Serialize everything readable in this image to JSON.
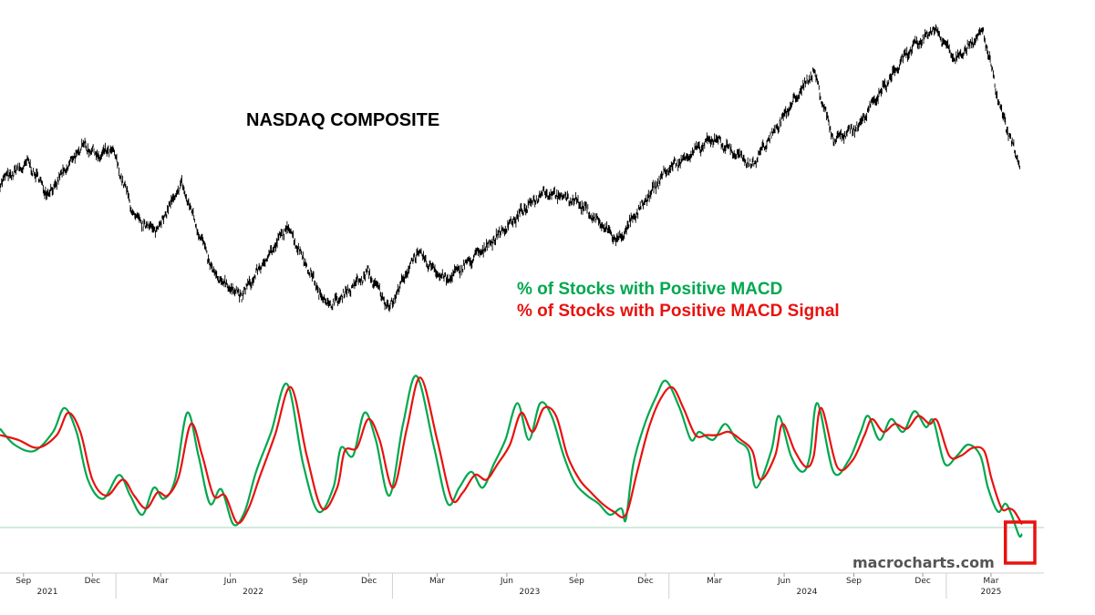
{
  "chart_data": [
    {
      "type": "line",
      "title": "NASDAQ COMPOSITE",
      "series": [
        {
          "color": "#000000",
          "points": [
            [
              "2021-08-01",
              14700
            ],
            [
              "2021-09-07",
              15380
            ],
            [
              "2021-10-04",
              14250
            ],
            [
              "2021-11-19",
              16050
            ],
            [
              "2021-12-10",
              15600
            ],
            [
              "2021-12-27",
              15870
            ],
            [
              "2022-01-27",
              13350
            ],
            [
              "2022-02-24",
              13000
            ],
            [
              "2022-03-29",
              14620
            ],
            [
              "2022-05-11",
              11360
            ],
            [
              "2022-06-16",
              10650
            ],
            [
              "2022-08-16",
              13130
            ],
            [
              "2022-09-30",
              10580
            ],
            [
              "2022-10-13",
              10320
            ],
            [
              "2022-11-30",
              11470
            ],
            [
              "2022-12-28",
              10210
            ],
            [
              "2023-02-02",
              12200
            ],
            [
              "2023-03-13",
              11190
            ],
            [
              "2023-04-28",
              12230
            ],
            [
              "2023-07-19",
              14360
            ],
            [
              "2023-09-01",
              14030
            ],
            [
              "2023-10-26",
              12600
            ],
            [
              "2023-12-28",
              15100
            ],
            [
              "2024-03-01",
              16270
            ],
            [
              "2024-04-19",
              15280
            ],
            [
              "2024-07-10",
              18650
            ],
            [
              "2024-08-05",
              16200
            ],
            [
              "2024-09-06",
              16690
            ],
            [
              "2024-11-11",
              19300
            ],
            [
              "2024-12-16",
              20170
            ],
            [
              "2025-01-13",
              19100
            ],
            [
              "2025-02-19",
              20050
            ],
            [
              "2025-03-13",
              17300
            ],
            [
              "2025-04-04",
              15590
            ],
            [
              "2025-04-08",
              15270
            ],
            [
              "2025-04-09",
              17100
            ]
          ]
        }
      ]
    },
    {
      "type": "line",
      "legend_position": "top-right",
      "series": [
        {
          "name": "% of Stocks with Positive MACD",
          "color": "#00a84f",
          "points": [
            [
              "2021-08-01",
              62
            ],
            [
              "2021-08-20",
              52
            ],
            [
              "2021-09-15",
              48
            ],
            [
              "2021-10-10",
              60
            ],
            [
              "2021-10-25",
              75
            ],
            [
              "2021-11-10",
              60
            ],
            [
              "2021-11-25",
              30
            ],
            [
              "2021-12-15",
              18
            ],
            [
              "2022-01-05",
              33
            ],
            [
              "2022-01-20",
              20
            ],
            [
              "2022-02-05",
              8
            ],
            [
              "2022-02-20",
              25
            ],
            [
              "2022-03-05",
              18
            ],
            [
              "2022-03-20",
              30
            ],
            [
              "2022-04-05",
              72
            ],
            [
              "2022-04-20",
              45
            ],
            [
              "2022-05-05",
              15
            ],
            [
              "2022-05-20",
              24
            ],
            [
              "2022-06-05",
              2
            ],
            [
              "2022-06-20",
              10
            ],
            [
              "2022-07-05",
              35
            ],
            [
              "2022-07-25",
              60
            ],
            [
              "2022-08-15",
              90
            ],
            [
              "2022-09-05",
              40
            ],
            [
              "2022-09-25",
              10
            ],
            [
              "2022-10-15",
              25
            ],
            [
              "2022-10-25",
              50
            ],
            [
              "2022-11-10",
              45
            ],
            [
              "2022-11-25",
              72
            ],
            [
              "2022-12-10",
              55
            ],
            [
              "2022-12-28",
              20
            ],
            [
              "2023-01-15",
              65
            ],
            [
              "2023-02-02",
              95
            ],
            [
              "2023-02-25",
              50
            ],
            [
              "2023-03-15",
              15
            ],
            [
              "2023-03-30",
              25
            ],
            [
              "2023-04-15",
              35
            ],
            [
              "2023-04-30",
              25
            ],
            [
              "2023-05-15",
              40
            ],
            [
              "2023-05-30",
              55
            ],
            [
              "2023-06-15",
              78
            ],
            [
              "2023-06-30",
              55
            ],
            [
              "2023-07-15",
              78
            ],
            [
              "2023-07-30",
              70
            ],
            [
              "2023-08-15",
              45
            ],
            [
              "2023-08-30",
              28
            ],
            [
              "2023-09-15",
              20
            ],
            [
              "2023-09-30",
              15
            ],
            [
              "2023-10-15",
              8
            ],
            [
              "2023-10-30",
              12
            ],
            [
              "2023-11-05",
              5
            ],
            [
              "2023-11-15",
              40
            ],
            [
              "2023-11-30",
              65
            ],
            [
              "2023-12-15",
              82
            ],
            [
              "2023-12-28",
              92
            ],
            [
              "2024-01-15",
              75
            ],
            [
              "2024-01-30",
              55
            ],
            [
              "2024-02-10",
              60
            ],
            [
              "2024-02-28",
              55
            ],
            [
              "2024-03-15",
              65
            ],
            [
              "2024-03-30",
              55
            ],
            [
              "2024-04-15",
              48
            ],
            [
              "2024-04-25",
              25
            ],
            [
              "2024-05-15",
              48
            ],
            [
              "2024-05-25",
              70
            ],
            [
              "2024-06-10",
              45
            ],
            [
              "2024-06-25",
              35
            ],
            [
              "2024-07-05",
              45
            ],
            [
              "2024-07-15",
              78
            ],
            [
              "2024-08-05",
              35
            ],
            [
              "2024-08-25",
              42
            ],
            [
              "2024-09-10",
              60
            ],
            [
              "2024-09-20",
              70
            ],
            [
              "2024-10-05",
              55
            ],
            [
              "2024-10-20",
              68
            ],
            [
              "2024-11-05",
              60
            ],
            [
              "2024-11-20",
              73
            ],
            [
              "2024-12-05",
              63
            ],
            [
              "2024-12-15",
              67
            ],
            [
              "2024-12-30",
              40
            ],
            [
              "2025-01-15",
              45
            ],
            [
              "2025-01-30",
              52
            ],
            [
              "2025-02-15",
              45
            ],
            [
              "2025-02-25",
              25
            ],
            [
              "2025-03-10",
              10
            ],
            [
              "2025-03-20",
              15
            ],
            [
              "2025-03-28",
              8
            ],
            [
              "2025-04-07",
              -5
            ],
            [
              "2025-04-11",
              -4
            ]
          ]
        },
        {
          "name": "% of Stocks with Positive MACD Signal",
          "color": "#e8120f",
          "points": [
            [
              "2021-08-01",
              58
            ],
            [
              "2021-08-25",
              55
            ],
            [
              "2021-09-20",
              50
            ],
            [
              "2021-10-15",
              58
            ],
            [
              "2021-10-30",
              72
            ],
            [
              "2021-11-15",
              60
            ],
            [
              "2021-12-01",
              30
            ],
            [
              "2021-12-20",
              20
            ],
            [
              "2022-01-10",
              30
            ],
            [
              "2022-01-25",
              20
            ],
            [
              "2022-02-10",
              12
            ],
            [
              "2022-02-25",
              22
            ],
            [
              "2022-03-10",
              20
            ],
            [
              "2022-03-25",
              32
            ],
            [
              "2022-04-10",
              65
            ],
            [
              "2022-04-25",
              45
            ],
            [
              "2022-05-10",
              20
            ],
            [
              "2022-05-25",
              20
            ],
            [
              "2022-06-10",
              3
            ],
            [
              "2022-06-25",
              12
            ],
            [
              "2022-07-10",
              32
            ],
            [
              "2022-07-30",
              58
            ],
            [
              "2022-08-20",
              88
            ],
            [
              "2022-09-10",
              45
            ],
            [
              "2022-09-30",
              12
            ],
            [
              "2022-10-20",
              25
            ],
            [
              "2022-10-30",
              48
            ],
            [
              "2022-11-15",
              50
            ],
            [
              "2022-11-30",
              68
            ],
            [
              "2022-12-15",
              55
            ],
            [
              "2023-01-02",
              25
            ],
            [
              "2023-01-20",
              62
            ],
            [
              "2023-02-07",
              94
            ],
            [
              "2023-03-01",
              55
            ],
            [
              "2023-03-20",
              18
            ],
            [
              "2023-04-04",
              22
            ],
            [
              "2023-04-20",
              33
            ],
            [
              "2023-05-05",
              30
            ],
            [
              "2023-05-20",
              40
            ],
            [
              "2023-06-05",
              52
            ],
            [
              "2023-06-20",
              72
            ],
            [
              "2023-07-05",
              60
            ],
            [
              "2023-07-20",
              75
            ],
            [
              "2023-08-05",
              70
            ],
            [
              "2023-08-20",
              45
            ],
            [
              "2023-09-05",
              30
            ],
            [
              "2023-09-20",
              22
            ],
            [
              "2023-10-05",
              15
            ],
            [
              "2023-10-20",
              10
            ],
            [
              "2023-11-05",
              8
            ],
            [
              "2023-11-20",
              35
            ],
            [
              "2023-12-05",
              62
            ],
            [
              "2023-12-20",
              80
            ],
            [
              "2024-01-05",
              88
            ],
            [
              "2024-01-20",
              75
            ],
            [
              "2024-02-05",
              58
            ],
            [
              "2024-02-20",
              58
            ],
            [
              "2024-03-05",
              58
            ],
            [
              "2024-03-20",
              60
            ],
            [
              "2024-04-05",
              55
            ],
            [
              "2024-04-20",
              48
            ],
            [
              "2024-05-01",
              30
            ],
            [
              "2024-05-20",
              45
            ],
            [
              "2024-05-30",
              65
            ],
            [
              "2024-06-15",
              48
            ],
            [
              "2024-06-30",
              38
            ],
            [
              "2024-07-10",
              45
            ],
            [
              "2024-07-20",
              75
            ],
            [
              "2024-08-10",
              38
            ],
            [
              "2024-08-30",
              42
            ],
            [
              "2024-09-15",
              58
            ],
            [
              "2024-09-25",
              68
            ],
            [
              "2024-10-10",
              60
            ],
            [
              "2024-10-25",
              65
            ],
            [
              "2024-11-10",
              62
            ],
            [
              "2024-11-25",
              70
            ],
            [
              "2024-12-10",
              65
            ],
            [
              "2024-12-20",
              67
            ],
            [
              "2025-01-05",
              45
            ],
            [
              "2025-01-20",
              45
            ],
            [
              "2025-02-05",
              50
            ],
            [
              "2025-02-20",
              48
            ],
            [
              "2025-03-02",
              30
            ],
            [
              "2025-03-15",
              12
            ],
            [
              "2025-03-25",
              12
            ],
            [
              "2025-04-01",
              10
            ],
            [
              "2025-04-11",
              2
            ]
          ]
        }
      ],
      "reference_line": {
        "color": "#a6d9b5"
      },
      "highlight_box_color": "#e8120f"
    }
  ],
  "x_axis": {
    "month_ticks": [
      {
        "date": "2021-09-01",
        "label": "Sep"
      },
      {
        "date": "2021-12-01",
        "label": "Dec"
      },
      {
        "date": "2022-03-01",
        "label": "Mar"
      },
      {
        "date": "2022-06-01",
        "label": "Jun"
      },
      {
        "date": "2022-09-01",
        "label": "Sep"
      },
      {
        "date": "2022-12-01",
        "label": "Dec"
      },
      {
        "date": "2023-03-01",
        "label": "Mar"
      },
      {
        "date": "2023-06-01",
        "label": "Jun"
      },
      {
        "date": "2023-09-01",
        "label": "Sep"
      },
      {
        "date": "2023-12-01",
        "label": "Dec"
      },
      {
        "date": "2024-03-01",
        "label": "Mar"
      },
      {
        "date": "2024-06-01",
        "label": "Jun"
      },
      {
        "date": "2024-09-01",
        "label": "Sep"
      },
      {
        "date": "2024-12-01",
        "label": "Dec"
      },
      {
        "date": "2025-03-01",
        "label": "Mar"
      }
    ],
    "year_labels": [
      {
        "date": "2021-01-01",
        "label": "2021"
      },
      {
        "date": "2022-07-01",
        "label": "2022"
      },
      {
        "date": "2023-07-01",
        "label": "2023"
      },
      {
        "date": "2024-07-01",
        "label": "2024"
      },
      {
        "date": "2025-03-01",
        "label": "2025"
      }
    ]
  },
  "watermark": "macrocharts.com"
}
